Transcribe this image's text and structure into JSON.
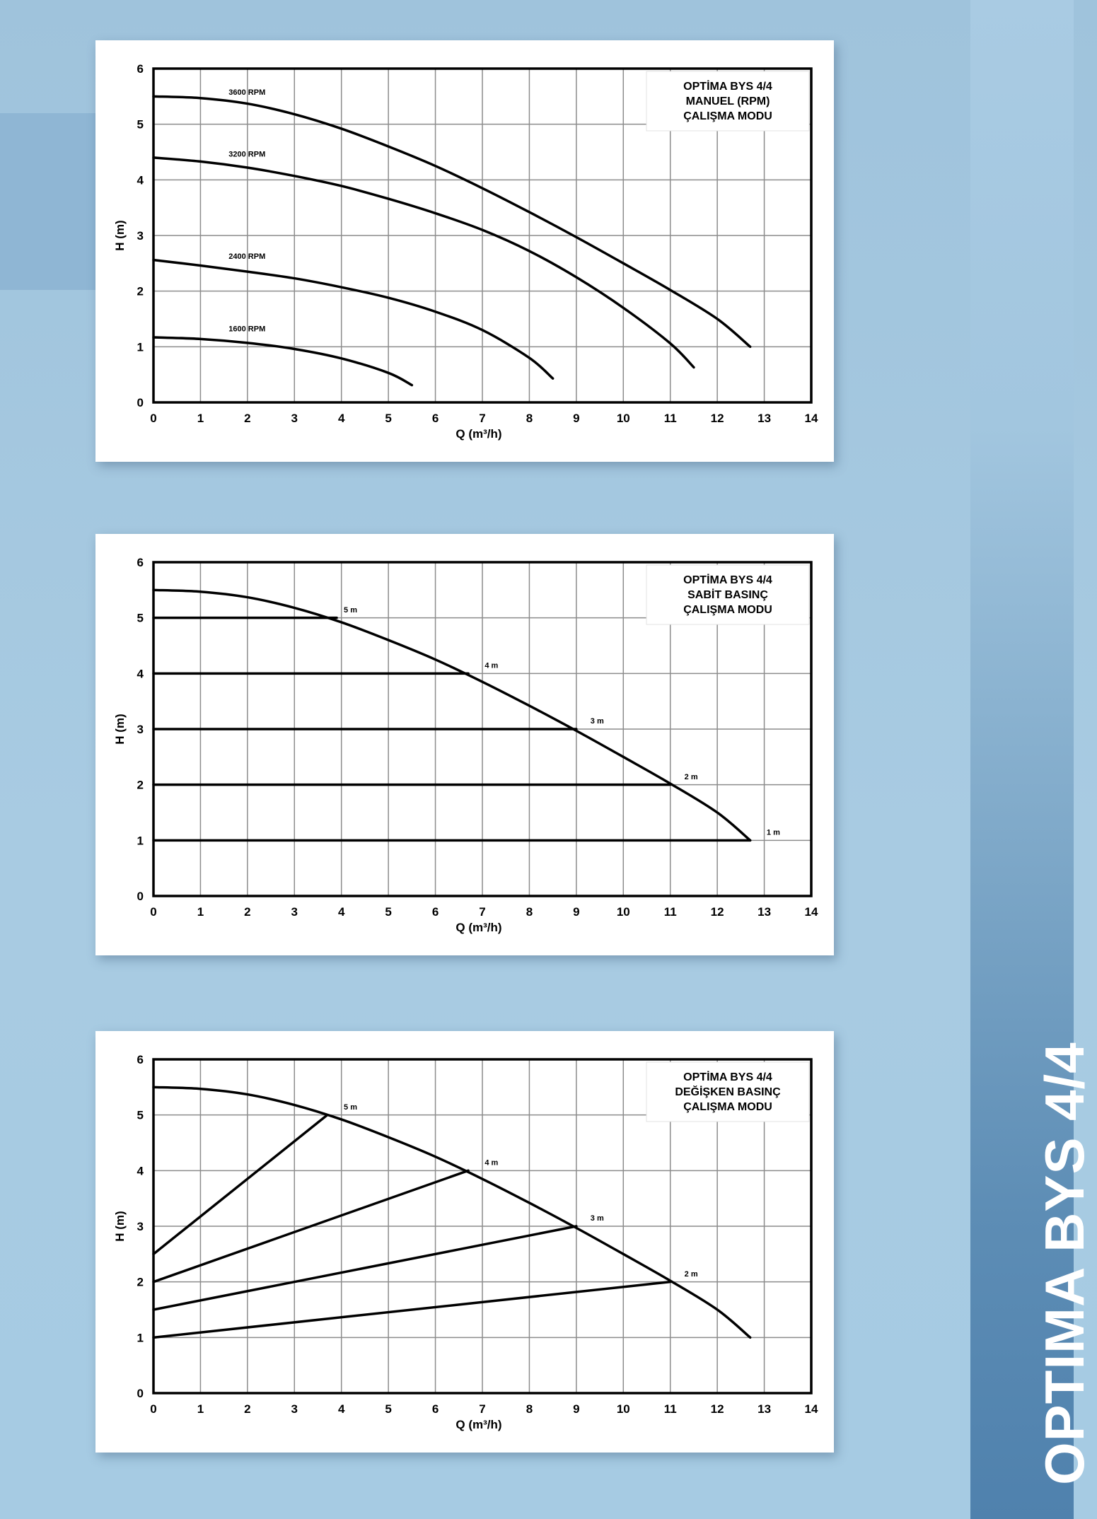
{
  "side_title": "OPTIMA BYS 4/4",
  "colors": {
    "line": "#000000",
    "grid": "#8c8c8c",
    "card": "#ffffff"
  },
  "chart_data": [
    {
      "type": "line",
      "title": "OPTİMA BYS 4/4\nMANUEL (RPM)\nÇALIŞMA MODU",
      "xlabel": "Q (m³/h)",
      "ylabel": "H (m)",
      "xlim": [
        0,
        14
      ],
      "ylim": [
        0,
        6
      ],
      "xticks": [
        "0",
        "1",
        "2",
        "3",
        "4",
        "5",
        "6",
        "7",
        "8",
        "9",
        "10",
        "11",
        "12",
        "13",
        "14"
      ],
      "yticks": [
        "0",
        "1",
        "2",
        "3",
        "4",
        "5",
        "6"
      ],
      "grid": true,
      "legend": "top-right",
      "series": [
        {
          "name": "3600  RPM",
          "points": [
            [
              0,
              5.5
            ],
            [
              1,
              5.47
            ],
            [
              2,
              5.37
            ],
            [
              3,
              5.18
            ],
            [
              4,
              4.92
            ],
            [
              5,
              4.6
            ],
            [
              6,
              4.25
            ],
            [
              7,
              3.85
            ],
            [
              8,
              3.42
            ],
            [
              9,
              2.97
            ],
            [
              10,
              2.5
            ],
            [
              11,
              2.02
            ],
            [
              12,
              1.5
            ],
            [
              12.7,
              1.0
            ]
          ]
        },
        {
          "name": "3200  RPM",
          "points": [
            [
              0,
              4.4
            ],
            [
              1,
              4.33
            ],
            [
              2,
              4.22
            ],
            [
              3,
              4.07
            ],
            [
              4,
              3.89
            ],
            [
              5,
              3.66
            ],
            [
              6,
              3.4
            ],
            [
              7,
              3.1
            ],
            [
              8,
              2.72
            ],
            [
              9,
              2.25
            ],
            [
              10,
              1.7
            ],
            [
              11,
              1.06
            ],
            [
              11.5,
              0.63
            ]
          ]
        },
        {
          "name": "2400  RPM",
          "points": [
            [
              0,
              2.56
            ],
            [
              1,
              2.46
            ],
            [
              2,
              2.35
            ],
            [
              3,
              2.23
            ],
            [
              4,
              2.07
            ],
            [
              5,
              1.88
            ],
            [
              6,
              1.63
            ],
            [
              7,
              1.3
            ],
            [
              8,
              0.8
            ],
            [
              8.5,
              0.43
            ]
          ]
        },
        {
          "name": "1600  RPM",
          "points": [
            [
              0,
              1.17
            ],
            [
              1,
              1.14
            ],
            [
              2,
              1.07
            ],
            [
              3,
              0.96
            ],
            [
              4,
              0.79
            ],
            [
              5,
              0.53
            ],
            [
              5.5,
              0.31
            ]
          ]
        }
      ],
      "curve_labels": [
        {
          "text": "3600  RPM",
          "x": 1.6,
          "y": 5.53
        },
        {
          "text": "3200  RPM",
          "x": 1.6,
          "y": 4.42
        },
        {
          "text": "2400  RPM",
          "x": 1.6,
          "y": 2.58
        },
        {
          "text": "1600  RPM",
          "x": 1.6,
          "y": 1.28
        }
      ],
      "segments": []
    },
    {
      "type": "line",
      "title": "OPTİMA BYS 4/4\nSABİT BASINÇ\nÇALIŞMA MODU",
      "xlabel": "Q (m³/h)",
      "ylabel": "H (m)",
      "xlim": [
        0,
        14
      ],
      "ylim": [
        0,
        6
      ],
      "xticks": [
        "0",
        "1",
        "2",
        "3",
        "4",
        "5",
        "6",
        "7",
        "8",
        "9",
        "10",
        "11",
        "12",
        "13",
        "14"
      ],
      "yticks": [
        "0",
        "1",
        "2",
        "3",
        "4",
        "5",
        "6"
      ],
      "grid": true,
      "legend": "top-right",
      "series": [
        {
          "name": "",
          "points": [
            [
              0,
              5.5
            ],
            [
              1,
              5.47
            ],
            [
              2,
              5.37
            ],
            [
              3,
              5.18
            ],
            [
              4,
              4.92
            ],
            [
              5,
              4.6
            ],
            [
              6,
              4.25
            ],
            [
              7,
              3.85
            ],
            [
              8,
              3.42
            ],
            [
              9,
              2.97
            ],
            [
              10,
              2.5
            ],
            [
              11,
              2.02
            ],
            [
              12,
              1.5
            ],
            [
              12.7,
              1.0
            ]
          ]
        }
      ],
      "segments": [
        {
          "x1": 0,
          "y1": 5,
          "x2": 3.9,
          "y2": 5
        },
        {
          "x1": 0,
          "y1": 4,
          "x2": 6.7,
          "y2": 4
        },
        {
          "x1": 0,
          "y1": 3,
          "x2": 9.0,
          "y2": 3
        },
        {
          "x1": 0,
          "y1": 2,
          "x2": 11.0,
          "y2": 2
        },
        {
          "x1": 0,
          "y1": 1,
          "x2": 12.7,
          "y2": 1
        }
      ],
      "curve_labels": [
        {
          "text": "5 m",
          "x": 4.05,
          "y": 5.1
        },
        {
          "text": "4 m",
          "x": 7.05,
          "y": 4.1
        },
        {
          "text": "3 m",
          "x": 9.3,
          "y": 3.1
        },
        {
          "text": "2 m",
          "x": 11.3,
          "y": 2.1
        },
        {
          "text": "1 m",
          "x": 13.05,
          "y": 1.1
        }
      ]
    },
    {
      "type": "line",
      "title": "OPTİMA BYS 4/4\nDEĞİŞKEN BASINÇ\nÇALIŞMA MODU",
      "xlabel": "Q (m³/h)",
      "ylabel": "H (m)",
      "xlim": [
        0,
        14
      ],
      "ylim": [
        0,
        6
      ],
      "xticks": [
        "0",
        "1",
        "2",
        "3",
        "4",
        "5",
        "6",
        "7",
        "8",
        "9",
        "10",
        "11",
        "12",
        "13",
        "14"
      ],
      "yticks": [
        "0",
        "1",
        "2",
        "3",
        "4",
        "5",
        "6"
      ],
      "grid": true,
      "legend": "top-right",
      "series": [
        {
          "name": "",
          "points": [
            [
              0,
              5.5
            ],
            [
              1,
              5.47
            ],
            [
              2,
              5.37
            ],
            [
              3,
              5.18
            ],
            [
              4,
              4.92
            ],
            [
              5,
              4.6
            ],
            [
              6,
              4.25
            ],
            [
              7,
              3.85
            ],
            [
              8,
              3.42
            ],
            [
              9,
              2.97
            ],
            [
              10,
              2.5
            ],
            [
              11,
              2.02
            ],
            [
              12,
              1.5
            ],
            [
              12.7,
              1.0
            ]
          ]
        }
      ],
      "segments": [
        {
          "x1": 0,
          "y1": 2.5,
          "x2": 3.7,
          "y2": 5
        },
        {
          "x1": 0,
          "y1": 2.0,
          "x2": 6.7,
          "y2": 4
        },
        {
          "x1": 0,
          "y1": 1.5,
          "x2": 9.0,
          "y2": 3
        },
        {
          "x1": 0,
          "y1": 1.0,
          "x2": 11.0,
          "y2": 2
        }
      ],
      "curve_labels": [
        {
          "text": "5 m",
          "x": 4.05,
          "y": 5.1
        },
        {
          "text": "4 m",
          "x": 7.05,
          "y": 4.1
        },
        {
          "text": "3 m",
          "x": 9.3,
          "y": 3.1
        },
        {
          "text": "2 m",
          "x": 11.3,
          "y": 2.1
        }
      ]
    }
  ]
}
